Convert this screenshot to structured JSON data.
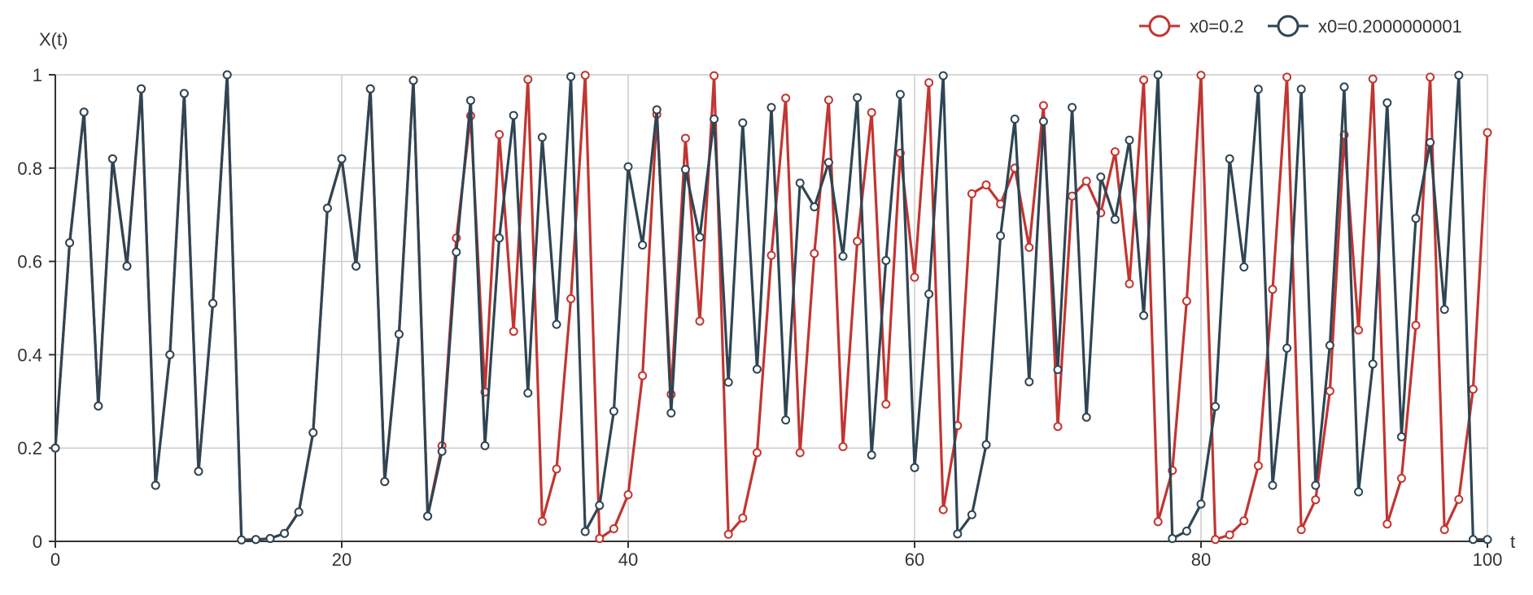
{
  "chart_data": {
    "type": "line",
    "ylabel": "X(t)",
    "xlabel": "t",
    "xlim": [
      0,
      100
    ],
    "ylim": [
      0,
      1
    ],
    "xticks": [
      0,
      20,
      40,
      60,
      80,
      100
    ],
    "yticks": [
      0,
      0.2,
      0.4,
      0.6,
      0.8,
      1
    ],
    "xtick_labels": [
      "0",
      "20",
      "40",
      "60",
      "80",
      "100"
    ],
    "ytick_labels": [
      "0",
      "0.2",
      "0.4",
      "0.6",
      "0.8",
      "1"
    ],
    "grid": true,
    "legend_position": "top-right",
    "x": [
      0,
      1,
      2,
      3,
      4,
      5,
      6,
      7,
      8,
      9,
      10,
      11,
      12,
      13,
      14,
      15,
      16,
      17,
      18,
      19,
      20,
      21,
      22,
      23,
      24,
      25,
      26,
      27,
      28,
      29,
      30,
      31,
      32,
      33,
      34,
      35,
      36,
      37,
      38,
      39,
      40,
      41,
      42,
      43,
      44,
      45,
      46,
      47,
      48,
      49,
      50,
      51,
      52,
      53,
      54,
      55,
      56,
      57,
      58,
      59,
      60,
      61,
      62,
      63,
      64,
      65,
      66,
      67,
      68,
      69,
      70,
      71,
      72,
      73,
      74,
      75,
      76,
      77,
      78,
      79,
      80,
      81,
      82,
      83,
      84,
      85,
      86,
      87,
      88,
      89,
      90,
      91,
      92,
      93,
      94,
      95,
      96,
      97,
      98,
      99,
      100
    ],
    "series": [
      {
        "name": "x0=0.2",
        "color": "#c23531",
        "values": [
          0.2,
          0.64,
          0.92,
          0.29,
          0.82,
          0.59,
          0.97,
          0.12,
          0.4,
          0.96,
          0.15,
          0.51,
          1.0,
          0.003,
          0.004,
          0.006,
          0.017,
          0.063,
          0.233,
          0.714,
          0.82,
          0.59,
          0.97,
          0.128,
          0.444,
          0.988,
          0.054,
          0.205,
          0.65,
          0.912,
          0.32,
          0.872,
          0.45,
          0.99,
          0.043,
          0.155,
          0.52,
          0.999,
          0.006,
          0.027,
          0.1,
          0.355,
          0.915,
          0.315,
          0.864,
          0.472,
          0.998,
          0.015,
          0.05,
          0.19,
          0.613,
          0.95,
          0.19,
          0.617,
          0.946,
          0.203,
          0.643,
          0.919,
          0.294,
          0.832,
          0.566,
          0.983,
          0.068,
          0.248,
          0.745,
          0.764,
          0.723,
          0.8,
          0.63,
          0.934,
          0.246,
          0.74,
          0.772,
          0.704,
          0.835,
          0.552,
          0.989,
          0.042,
          0.152,
          0.515,
          0.999,
          0.004,
          0.014,
          0.044,
          0.162,
          0.54,
          0.995,
          0.025,
          0.089,
          0.322,
          0.871,
          0.453,
          0.991,
          0.037,
          0.135,
          0.463,
          0.995,
          0.025,
          0.09,
          0.326,
          0.876
        ],
        "marker_fill": "#ffffff"
      },
      {
        "name": "x0=0.2000000001",
        "color": "#2f4554",
        "values": [
          0.2,
          0.64,
          0.92,
          0.29,
          0.82,
          0.59,
          0.97,
          0.12,
          0.4,
          0.96,
          0.15,
          0.51,
          1.0,
          0.003,
          0.004,
          0.006,
          0.017,
          0.063,
          0.233,
          0.714,
          0.82,
          0.59,
          0.97,
          0.128,
          0.444,
          0.988,
          0.054,
          0.193,
          0.62,
          0.945,
          0.205,
          0.65,
          0.913,
          0.318,
          0.866,
          0.465,
          0.996,
          0.021,
          0.077,
          0.279,
          0.803,
          0.635,
          0.925,
          0.275,
          0.797,
          0.652,
          0.905,
          0.341,
          0.897,
          0.369,
          0.93,
          0.26,
          0.768,
          0.717,
          0.812,
          0.611,
          0.951,
          0.185,
          0.602,
          0.958,
          0.158,
          0.53,
          0.998,
          0.016,
          0.057,
          0.207,
          0.655,
          0.905,
          0.342,
          0.9,
          0.368,
          0.93,
          0.266,
          0.781,
          0.69,
          0.86,
          0.484,
          1.0,
          0.006,
          0.022,
          0.08,
          0.289,
          0.82,
          0.588,
          0.969,
          0.12,
          0.414,
          0.969,
          0.12,
          0.42,
          0.974,
          0.106,
          0.38,
          0.94,
          0.224,
          0.692,
          0.855,
          0.497,
          0.999,
          0.004,
          0.004
        ],
        "marker_fill": "#ffffff"
      }
    ]
  }
}
